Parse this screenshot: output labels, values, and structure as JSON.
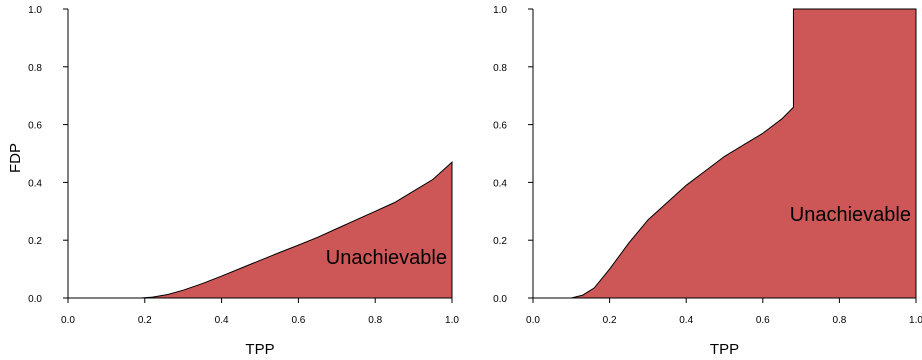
{
  "chart_data": [
    {
      "type": "area",
      "title": "",
      "xlabel": "TPP",
      "ylabel": "FDP",
      "xlim": [
        0,
        1
      ],
      "ylim": [
        0,
        1
      ],
      "x_ticks": [
        "0.0",
        "0.2",
        "0.4",
        "0.6",
        "0.8",
        "1.0"
      ],
      "y_ticks": [
        "0.0",
        "0.2",
        "0.4",
        "0.6",
        "0.8",
        "1.0"
      ],
      "fill_color": "#cd5757",
      "grid": false,
      "region_label": "Unachievable",
      "boundary": {
        "x": [
          0,
          0.19,
          0.22,
          0.26,
          0.3,
          0.35,
          0.4,
          0.45,
          0.5,
          0.55,
          0.6,
          0.65,
          0.7,
          0.75,
          0.8,
          0.85,
          0.9,
          0.95,
          1.0
        ],
        "y": [
          0,
          0,
          0.003,
          0.012,
          0.027,
          0.05,
          0.076,
          0.103,
          0.13,
          0.157,
          0.183,
          0.21,
          0.24,
          0.27,
          0.3,
          0.33,
          0.37,
          0.41,
          0.47
        ]
      },
      "vertical_edge": null
    },
    {
      "type": "area",
      "title": "",
      "xlabel": "TPP",
      "ylabel": "",
      "xlim": [
        0,
        1
      ],
      "ylim": [
        0,
        1
      ],
      "x_ticks": [
        "0.0",
        "0.2",
        "0.4",
        "0.6",
        "0.8",
        "1.0"
      ],
      "y_ticks": [
        "0.0",
        "0.2",
        "0.4",
        "0.6",
        "0.8",
        "1.0"
      ],
      "fill_color": "#cd5757",
      "grid": false,
      "region_label": "Unachievable",
      "boundary": {
        "x": [
          0,
          0.1,
          0.13,
          0.16,
          0.2,
          0.25,
          0.3,
          0.35,
          0.4,
          0.45,
          0.5,
          0.55,
          0.6,
          0.65,
          0.68
        ],
        "y": [
          0,
          0,
          0.01,
          0.035,
          0.1,
          0.19,
          0.27,
          0.33,
          0.39,
          0.44,
          0.49,
          0.53,
          0.57,
          0.62,
          0.66
        ]
      },
      "vertical_edge": {
        "x": 0.68,
        "y_from": 0.66,
        "y_to": 1.0
      }
    }
  ]
}
